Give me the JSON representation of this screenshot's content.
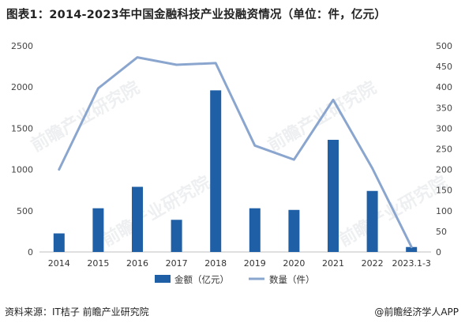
{
  "title": "图表1：2014-2023年中国金融科技产业投融资情况（单位：件，亿元）",
  "footer": {
    "source": "资料来源：IT桔子 前瞻产业研究院",
    "brand": "@前瞻经济学人APP"
  },
  "watermark": "前瞻产业研究院",
  "colors": {
    "bar": "#1f5fa6",
    "line": "#8aa6cf",
    "grid": "#d9d9d9"
  },
  "chart_data": {
    "type": "bar",
    "categories": [
      "2014",
      "2015",
      "2016",
      "2017",
      "2018",
      "2019",
      "2020",
      "2021",
      "2022",
      "2023.1-3"
    ],
    "series": [
      {
        "name": "金额（亿元）",
        "type": "bar",
        "axis": "left",
        "values": [
          225,
          530,
          790,
          390,
          1960,
          530,
          510,
          1360,
          740,
          60
        ]
      },
      {
        "name": "数量（件）",
        "type": "line",
        "axis": "right",
        "values": [
          200,
          397,
          472,
          454,
          458,
          258,
          224,
          369,
          203,
          12
        ]
      }
    ],
    "y_left": {
      "min": 0,
      "max": 2500,
      "ticks": [
        "0",
        "500",
        "1000",
        "1500",
        "2000",
        "2500"
      ]
    },
    "y_right": {
      "min": 0,
      "max": 500,
      "ticks": [
        "0",
        "50",
        "100",
        "150",
        "200",
        "250",
        "300",
        "350",
        "400",
        "450",
        "500"
      ]
    },
    "grid": false,
    "legend": "bottom"
  }
}
